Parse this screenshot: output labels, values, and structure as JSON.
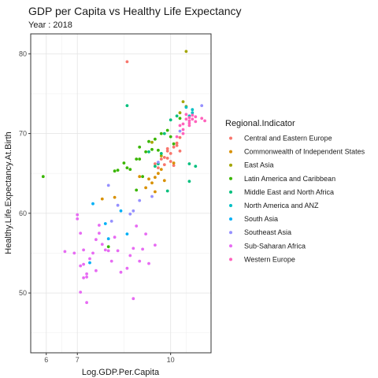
{
  "chart_data": {
    "type": "scatter",
    "title": "GDP per Capita vs Healthy Life Expectancy",
    "subtitle": "Year : 2018",
    "xlabel": "Log.GDP.Per.Capita",
    "ylabel": "Healthy.Life.Expectancy.At.Birth",
    "xlim": [
      5.5,
      11.3
    ],
    "ylim": [
      42.5,
      82.5
    ],
    "xticks": [
      {
        "value": 6,
        "label": "6"
      },
      {
        "value": 7,
        "label": "7"
      },
      {
        "value": 10,
        "label": "10"
      }
    ],
    "yticks": [
      {
        "value": 50,
        "label": "50"
      },
      {
        "value": 60,
        "label": "60"
      },
      {
        "value": 70,
        "label": "70"
      },
      {
        "value": 80,
        "label": "80"
      }
    ],
    "x_grid_minor": [
      6.5,
      8.5,
      10.5
    ],
    "y_grid_minor": [
      45,
      55,
      65,
      75
    ],
    "grid": true,
    "legend": {
      "title": "Regional.Indicator",
      "position": "right"
    },
    "series": [
      {
        "name": "Central and Eastern Europe",
        "color": "#F8766D",
        "points": [
          [
            8.6,
            79.0
          ],
          [
            9.5,
            66.2
          ],
          [
            9.7,
            66.8
          ],
          [
            9.8,
            67.0
          ],
          [
            9.9,
            66.9
          ],
          [
            10.0,
            66.5
          ],
          [
            10.0,
            67.5
          ],
          [
            10.1,
            68.3
          ],
          [
            10.2,
            68.5
          ],
          [
            10.2,
            68.8
          ],
          [
            10.3,
            67.8
          ],
          [
            9.9,
            67.8
          ],
          [
            9.8,
            66.1
          ],
          [
            10.1,
            66.0
          ],
          [
            9.6,
            65.7
          ],
          [
            10.3,
            69.5
          ],
          [
            9.9,
            68.1
          ]
        ]
      },
      {
        "name": "Commonwealth of Independent States",
        "color": "#D89000",
        "points": [
          [
            7.8,
            61.8
          ],
          [
            8.2,
            62.0
          ],
          [
            9.2,
            63.2
          ],
          [
            9.3,
            64.3
          ],
          [
            9.5,
            64.5
          ],
          [
            9.6,
            65.0
          ],
          [
            9.7,
            65.5
          ],
          [
            9.8,
            64.1
          ],
          [
            9.4,
            63.8
          ],
          [
            9.0,
            64.6
          ],
          [
            10.1,
            66.3
          ],
          [
            9.5,
            62.7
          ]
        ]
      },
      {
        "name": "East Asia",
        "color": "#A3A500",
        "points": [
          [
            10.5,
            80.3
          ],
          [
            10.4,
            74.0
          ],
          [
            10.3,
            72.6
          ],
          [
            9.4,
            68.9
          ],
          [
            9.7,
            67.2
          ],
          [
            10.5,
            73.4
          ]
        ]
      },
      {
        "name": "Latin America and Caribbean",
        "color": "#39B600",
        "points": [
          [
            5.9,
            64.6
          ],
          [
            8.0,
            55.8
          ],
          [
            8.2,
            65.3
          ],
          [
            8.3,
            65.4
          ],
          [
            8.5,
            66.3
          ],
          [
            8.7,
            65.5
          ],
          [
            8.9,
            66.8
          ],
          [
            9.0,
            68.3
          ],
          [
            9.2,
            67.7
          ],
          [
            9.3,
            69.0
          ],
          [
            9.4,
            68.0
          ],
          [
            9.5,
            69.3
          ],
          [
            9.6,
            67.9
          ],
          [
            9.7,
            70.0
          ],
          [
            9.9,
            70.4
          ],
          [
            10.0,
            69.6
          ],
          [
            10.1,
            68.7
          ],
          [
            10.3,
            71.9
          ],
          [
            8.9,
            62.9
          ],
          [
            9.0,
            66.8
          ],
          [
            9.1,
            64.6
          ],
          [
            8.6,
            65.7
          ]
        ]
      },
      {
        "name": "Middle East and North Africa",
        "color": "#00BF7D",
        "points": [
          [
            8.6,
            73.5
          ],
          [
            9.3,
            67.7
          ],
          [
            9.5,
            65.9
          ],
          [
            9.6,
            66.2
          ],
          [
            9.7,
            67.5
          ],
          [
            9.8,
            70.0
          ],
          [
            10.0,
            71.7
          ],
          [
            10.6,
            66.2
          ],
          [
            10.8,
            65.9
          ],
          [
            10.6,
            64.0
          ],
          [
            9.9,
            62.8
          ],
          [
            10.2,
            72.2
          ]
        ]
      },
      {
        "name": "North America and ANZ",
        "color": "#00BFC4",
        "points": [
          [
            10.7,
            73.0
          ],
          [
            10.5,
            73.3
          ],
          [
            10.6,
            72.2
          ],
          [
            10.7,
            72.6
          ]
        ]
      },
      {
        "name": "South Asia",
        "color": "#00B0F6",
        "points": [
          [
            7.5,
            61.2
          ],
          [
            7.9,
            58.7
          ],
          [
            8.0,
            56.8
          ],
          [
            8.4,
            60.3
          ],
          [
            8.6,
            57.4
          ],
          [
            7.4,
            53.8
          ]
        ]
      },
      {
        "name": "Southeast Asia",
        "color": "#9590FF",
        "points": [
          [
            8.1,
            59.0
          ],
          [
            8.3,
            61.0
          ],
          [
            8.7,
            59.9
          ],
          [
            8.8,
            60.3
          ],
          [
            9.0,
            61.6
          ],
          [
            9.4,
            62.1
          ],
          [
            9.6,
            66.4
          ],
          [
            10.3,
            70.3
          ],
          [
            11.0,
            73.5
          ],
          [
            8.0,
            63.5
          ]
        ]
      },
      {
        "name": "Sub-Saharan Africa",
        "color": "#E76BF3",
        "points": [
          [
            6.6,
            55.2
          ],
          [
            6.9,
            55.0
          ],
          [
            7.0,
            59.3
          ],
          [
            7.0,
            59.8
          ],
          [
            7.1,
            57.5
          ],
          [
            7.2,
            55.4
          ],
          [
            7.2,
            53.6
          ],
          [
            7.3,
            52.4
          ],
          [
            7.4,
            54.3
          ],
          [
            7.5,
            55.0
          ],
          [
            7.6,
            56.7
          ],
          [
            7.7,
            57.5
          ],
          [
            7.8,
            56.1
          ],
          [
            8.0,
            55.3
          ],
          [
            8.1,
            54.0
          ],
          [
            8.3,
            55.3
          ],
          [
            8.4,
            52.6
          ],
          [
            8.6,
            53.1
          ],
          [
            8.7,
            54.7
          ],
          [
            8.9,
            58.4
          ],
          [
            9.1,
            55.5
          ],
          [
            9.3,
            53.7
          ],
          [
            9.5,
            56.0
          ],
          [
            7.1,
            50.1
          ],
          [
            7.3,
            52.0
          ],
          [
            7.6,
            52.8
          ],
          [
            8.8,
            49.3
          ],
          [
            9.2,
            57.4
          ],
          [
            7.7,
            58.5
          ],
          [
            7.2,
            51.9
          ],
          [
            7.9,
            55.4
          ],
          [
            8.8,
            55.6
          ],
          [
            9.0,
            54.0
          ],
          [
            7.1,
            53.4
          ],
          [
            8.2,
            57.0
          ],
          [
            7.3,
            48.8
          ]
        ]
      },
      {
        "name": "Western Europe",
        "color": "#FF62BC",
        "points": [
          [
            10.3,
            71.0
          ],
          [
            10.4,
            71.2
          ],
          [
            10.5,
            71.8
          ],
          [
            10.6,
            72.0
          ],
          [
            10.6,
            71.0
          ],
          [
            10.7,
            72.3
          ],
          [
            10.8,
            71.5
          ],
          [
            10.6,
            71.6
          ],
          [
            10.4,
            70.5
          ],
          [
            10.5,
            72.4
          ],
          [
            10.8,
            72.1
          ],
          [
            11.0,
            71.9
          ],
          [
            10.4,
            70.0
          ],
          [
            10.6,
            71.3
          ],
          [
            11.1,
            71.6
          ],
          [
            10.2,
            69.6
          ],
          [
            10.7,
            71.8
          ]
        ]
      }
    ]
  }
}
